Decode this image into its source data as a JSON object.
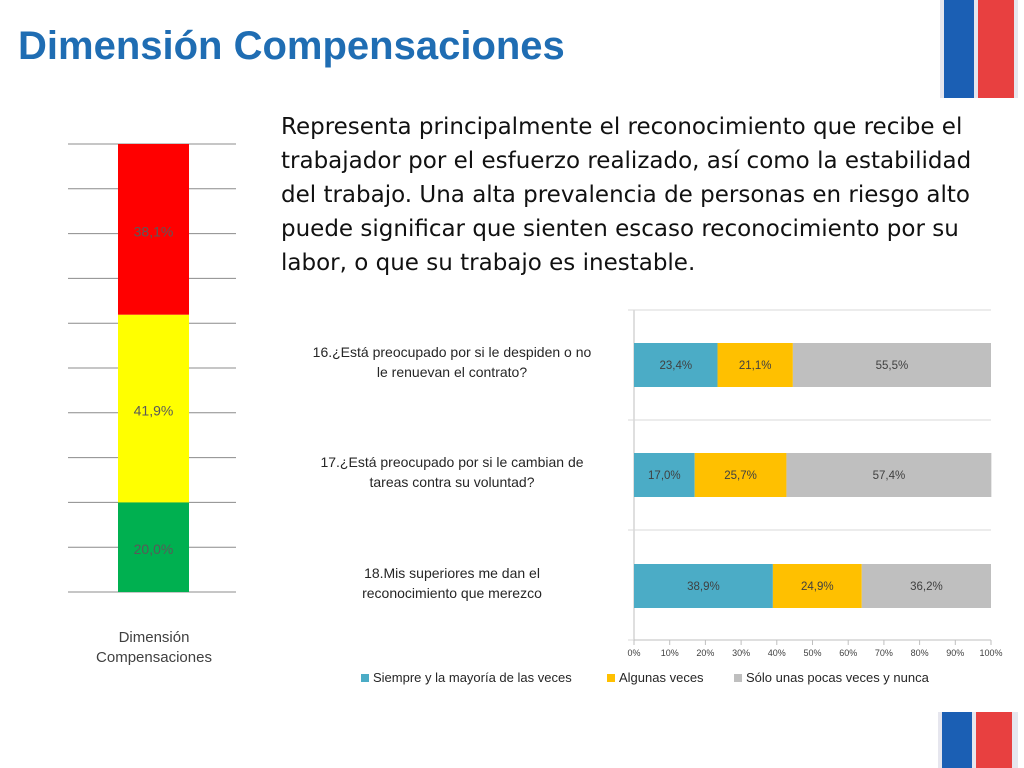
{
  "page": {
    "title": "Dimensión Compensaciones",
    "description": "Representa principalmente el reconocimiento que recibe el trabajador por el esfuerzo realizado, así como la estabilidad del trabajo. Una alta prevalencia de personas en riesgo alto puede significar que sienten escaso reconocimiento por su labor, o que su trabajo es inestable."
  },
  "chart_data": [
    {
      "type": "bar",
      "stacked": true,
      "orientation": "vertical",
      "categories": [
        "Dimensión Compensaciones"
      ],
      "series": [
        {
          "values": [
            20.0
          ],
          "color": "#00b050",
          "label": "20,0%"
        },
        {
          "values": [
            41.9
          ],
          "color": "#ffff00",
          "label": "41,9%"
        },
        {
          "values": [
            38.1
          ],
          "color": "#ff0000",
          "label": "38,1%"
        }
      ],
      "ylim": [
        0,
        100
      ],
      "grid": true,
      "legend": "none"
    },
    {
      "type": "bar",
      "stacked": true,
      "orientation": "horizontal",
      "categories": [
        "16.¿Está preocupado por si le despiden o no le renuevan el contrato?",
        "17.¿Está preocupado por si le cambian de tareas contra su voluntad?",
        "18.Mis superiores me dan el reconocimiento que merezco"
      ],
      "series": [
        {
          "name": "Siempre y la mayoría de las veces",
          "color": "#4bacc6",
          "values": [
            23.4,
            17.0,
            38.9
          ],
          "labels": [
            "23,4%",
            "17,0%",
            "38,9%"
          ]
        },
        {
          "name": "Algunas veces",
          "color": "#ffc000",
          "values": [
            21.1,
            25.7,
            24.9
          ],
          "labels": [
            "21,1%",
            "25,7%",
            "24,9%"
          ]
        },
        {
          "name": "Sólo unas pocas veces y nunca",
          "color": "#bfbfbf",
          "values": [
            55.5,
            57.4,
            36.2
          ],
          "labels": [
            "55,5%",
            "57,4%",
            "36,2%"
          ]
        }
      ],
      "xticks": [
        "0%",
        "10%",
        "20%",
        "30%",
        "40%",
        "50%",
        "60%",
        "70%",
        "80%",
        "90%",
        "100%"
      ],
      "xlim": [
        0,
        100
      ],
      "grid": true,
      "legend": "bottom"
    }
  ]
}
